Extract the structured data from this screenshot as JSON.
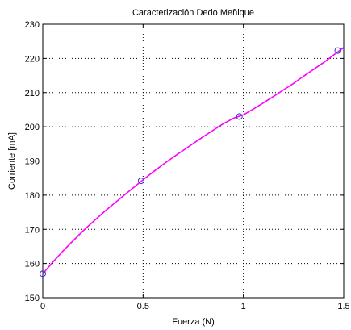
{
  "chart_data": {
    "type": "line",
    "title": "Caracterización Dedo Meñique",
    "xlabel": "Fuerza (N)",
    "ylabel": "Corriente [mA]",
    "xlim": [
      0,
      1.5
    ],
    "ylim": [
      150,
      230
    ],
    "xticks": [
      0,
      0.5,
      1,
      1.5
    ],
    "xtick_labels": [
      "0",
      "0.5",
      "1",
      "1.5"
    ],
    "yticks": [
      150,
      160,
      170,
      180,
      190,
      200,
      210,
      220,
      230
    ],
    "ytick_labels": [
      "150",
      "160",
      "170",
      "180",
      "190",
      "200",
      "210",
      "220",
      "230"
    ],
    "grid": true,
    "series": [
      {
        "type": "scatter",
        "marker": "circle",
        "color": "#3333cc",
        "x": [
          0,
          0.49,
          0.98,
          1.47
        ],
        "y": [
          157,
          184.2,
          203,
          222.3
        ]
      },
      {
        "type": "line",
        "color": "#ff00ff",
        "x": [
          0,
          0.05,
          0.1,
          0.15,
          0.2,
          0.25,
          0.3,
          0.35,
          0.4,
          0.45,
          0.5,
          0.55,
          0.6,
          0.65,
          0.7,
          0.75,
          0.8,
          0.85,
          0.9,
          0.95,
          1.0,
          1.05,
          1.1,
          1.15,
          1.2,
          1.25,
          1.3,
          1.35,
          1.4,
          1.45,
          1.5
        ],
        "y": [
          157.0,
          160.4,
          163.6,
          166.6,
          169.5,
          172.2,
          174.8,
          177.3,
          179.7,
          182.1,
          184.5,
          186.8,
          189.0,
          191.1,
          193.1,
          195.1,
          197.1,
          199.0,
          200.9,
          202.5,
          203.5,
          205.2,
          207.0,
          208.9,
          210.8,
          212.7,
          214.8,
          216.8,
          218.8,
          221.0,
          223.2
        ]
      }
    ]
  }
}
